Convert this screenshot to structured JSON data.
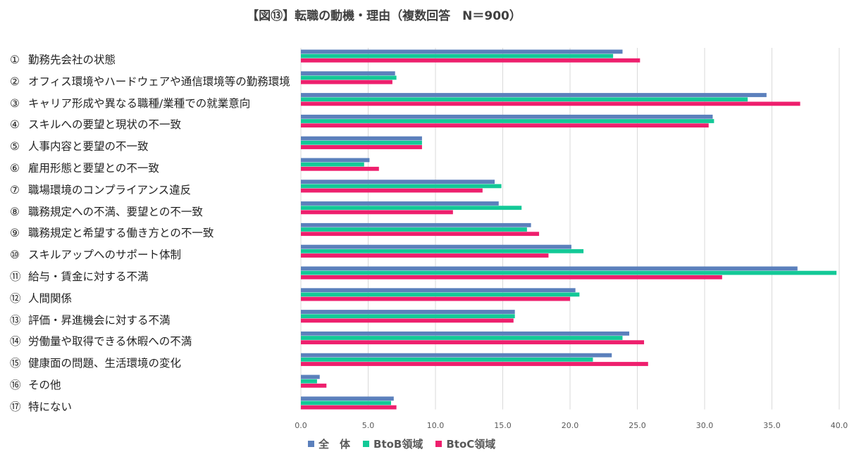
{
  "chart_data": {
    "type": "bar",
    "orientation": "horizontal",
    "title": "【図⑬】転職の動機・理由（複数回答　N＝900）",
    "xlabel": "",
    "ylabel": "",
    "xlim": [
      0,
      40
    ],
    "xticks": [
      "0.0",
      "5.0",
      "10.0",
      "15.0",
      "20.0",
      "25.0",
      "30.0",
      "35.0",
      "40.0"
    ],
    "grid": "vertical",
    "legend_position": "bottom",
    "categories": [
      {
        "num": "①",
        "label": "勤務先会社の状態"
      },
      {
        "num": "②",
        "label": "オフィス環境やハードウェアや通信環境等の勤務環境"
      },
      {
        "num": "③",
        "label": "キャリア形成や異なる職種/業種での就業意向"
      },
      {
        "num": "④",
        "label": "スキルへの要望と現状の不一致"
      },
      {
        "num": "⑤",
        "label": "人事内容と要望の不一致"
      },
      {
        "num": "⑥",
        "label": "雇用形態と要望との不一致"
      },
      {
        "num": "⑦",
        "label": "職場環境のコンプライアンス違反"
      },
      {
        "num": "⑧",
        "label": "職務規定への不満、要望との不一致"
      },
      {
        "num": "⑨",
        "label": "職務規定と希望する働き方との不一致"
      },
      {
        "num": "⑩",
        "label": "スキルアップへのサポート体制"
      },
      {
        "num": "⑪",
        "label": "給与・賃金に対する不満"
      },
      {
        "num": "⑫",
        "label": "人間関係"
      },
      {
        "num": "⑬",
        "label": "評価・昇進機会に対する不満"
      },
      {
        "num": "⑭",
        "label": "労働量や取得できる休暇への不満"
      },
      {
        "num": "⑮",
        "label": "健康面の問題、生活環境の変化"
      },
      {
        "num": "⑯",
        "label": "その他"
      },
      {
        "num": "⑰",
        "label": "特にない"
      }
    ],
    "series": [
      {
        "name": "全　体",
        "color": "#5b80bc",
        "values": [
          23.9,
          7.0,
          34.6,
          30.6,
          9.0,
          5.1,
          14.4,
          14.7,
          17.1,
          20.1,
          36.9,
          20.4,
          15.9,
          24.4,
          23.1,
          1.4,
          6.9
        ]
      },
      {
        "name": "BtoB領域",
        "color": "#13c997",
        "values": [
          23.2,
          7.1,
          33.2,
          30.7,
          9.0,
          4.7,
          14.9,
          16.4,
          16.8,
          21.0,
          39.8,
          20.7,
          15.9,
          23.9,
          21.7,
          1.2,
          6.7
        ]
      },
      {
        "name": "BtoC領域",
        "color": "#ee1f6d",
        "values": [
          25.2,
          6.8,
          37.1,
          30.3,
          9.0,
          5.8,
          13.5,
          11.3,
          17.7,
          18.4,
          31.3,
          20.0,
          15.8,
          25.5,
          25.8,
          1.9,
          7.1
        ]
      }
    ]
  }
}
